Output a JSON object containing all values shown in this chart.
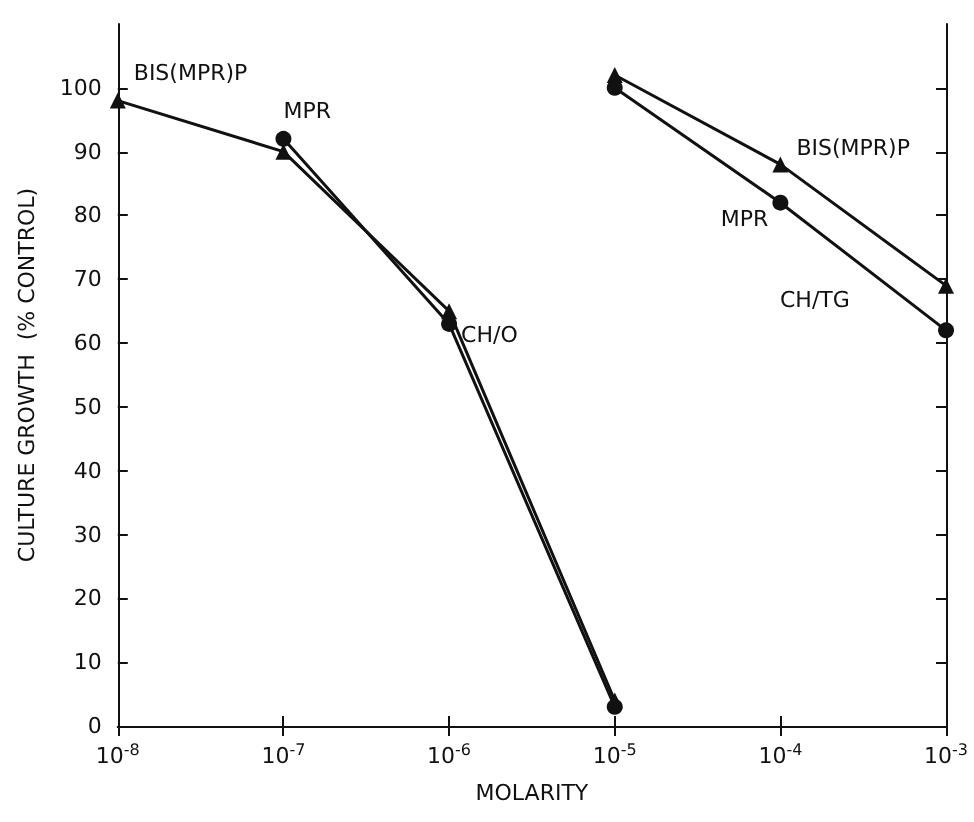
{
  "chart_data": {
    "type": "line",
    "xlabel": "MOLARITY",
    "ylabel": "CULTURE GROWTH  (% CONTROL)",
    "log": "x",
    "xlim": [
      1e-08,
      0.001
    ],
    "xticks": [
      {
        "value": 1e-08,
        "label": "10$^{-8}$"
      },
      {
        "value": 1e-07,
        "label": "10$^{-7}$"
      },
      {
        "value": 1e-06,
        "label": "10$^{-6}$"
      },
      {
        "value": 1e-05,
        "label": "10$^{-5}$"
      },
      {
        "value": 0.0001,
        "label": "10$^{-4}$"
      },
      {
        "value": 0.001,
        "label": "10$^{-3}$"
      }
    ],
    "ylim": [
      0,
      110
    ],
    "yticks": [
      0,
      10,
      20,
      30,
      40,
      50,
      60,
      70,
      80,
      90,
      100
    ],
    "grid": false,
    "line_style": "solid",
    "series": [
      {
        "color": "#111111",
        "marker": "triangle",
        "x": [
          1e-08,
          1e-07,
          1e-06,
          1e-05
        ],
        "values": [
          98,
          90,
          65,
          4
        ]
      },
      {
        "color": "#111111",
        "marker": "circle",
        "x": [
          1e-07,
          1e-06,
          1e-05
        ],
        "values": [
          92,
          63,
          3
        ]
      },
      {
        "color": "#111111",
        "marker": "triangle",
        "x": [
          1e-05,
          0.0001,
          0.001
        ],
        "values": [
          102,
          88,
          69
        ]
      },
      {
        "color": "#111111",
        "marker": "circle",
        "x": [
          1e-05,
          0.0001,
          0.001
        ],
        "values": [
          100,
          82,
          62
        ]
      }
    ],
    "annotations": [
      {
        "text": "BIS(MPR)P",
        "x": 1e-08,
        "y": 98
      },
      {
        "text": "MPR",
        "x": 1e-07,
        "y": 92
      },
      {
        "text": "CH/O",
        "x": 1e-06,
        "y": 65
      },
      {
        "text": "BIS(MPR)P",
        "x": 0.0001,
        "y": 88
      },
      {
        "text": "MPR",
        "x": 0.0001,
        "y": 82
      },
      "CH/TG"
    ]
  }
}
